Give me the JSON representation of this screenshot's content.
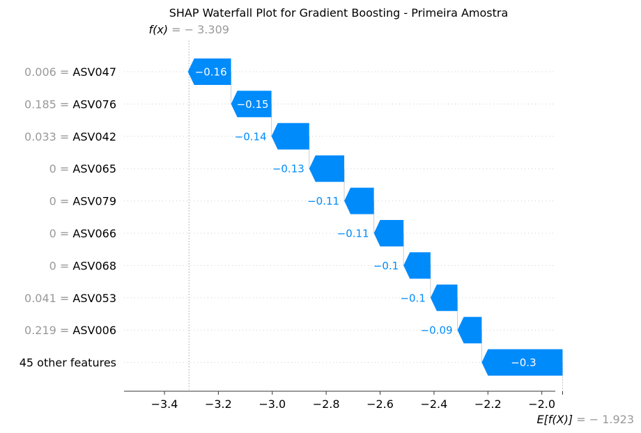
{
  "chart_data": {
    "type": "waterfall",
    "title": "SHAP Waterfall Plot for Gradient Boosting - Primeira Amostra",
    "fx_label": "f(x)",
    "fx_value": -3.309,
    "fx_value_text": "= − 3.309",
    "efx_label": "E[f(X)]",
    "efx_value": -1.923,
    "efx_value_text": "= − 1.923",
    "xlim": [
      -3.55,
      -1.95
    ],
    "x_ticks": [
      -3.4,
      -3.2,
      -3.0,
      -2.8,
      -2.6,
      -2.4,
      -2.2,
      -2.0
    ],
    "x_tick_labels": [
      "−3.4",
      "−3.2",
      "−3.0",
      "−2.8",
      "−2.6",
      "−2.4",
      "−2.2",
      "−2.0"
    ],
    "features": [
      {
        "value": "0.006",
        "name": "ASV047",
        "shap": -0.16,
        "label": "−0.16"
      },
      {
        "value": "0.185",
        "name": "ASV076",
        "shap": -0.15,
        "label": "−0.15"
      },
      {
        "value": "0.033",
        "name": "ASV042",
        "shap": -0.14,
        "label": "−0.14"
      },
      {
        "value": "0",
        "name": "ASV065",
        "shap": -0.13,
        "label": "−0.13"
      },
      {
        "value": "0",
        "name": "ASV079",
        "shap": -0.11,
        "label": "−0.11"
      },
      {
        "value": "0",
        "name": "ASV066",
        "shap": -0.11,
        "label": "−0.11"
      },
      {
        "value": "0",
        "name": "ASV068",
        "shap": -0.1,
        "label": "−0.1"
      },
      {
        "value": "0.041",
        "name": "ASV053",
        "shap": -0.1,
        "label": "−0.1"
      },
      {
        "value": "0.219",
        "name": "ASV006",
        "shap": -0.09,
        "label": "−0.09"
      },
      {
        "value": "",
        "name": "45 other features",
        "shap": -0.3,
        "label": "−0.3"
      }
    ],
    "colors": {
      "negative": "#008bfb",
      "grid": "#cccccc",
      "muted_text": "#999999"
    }
  }
}
